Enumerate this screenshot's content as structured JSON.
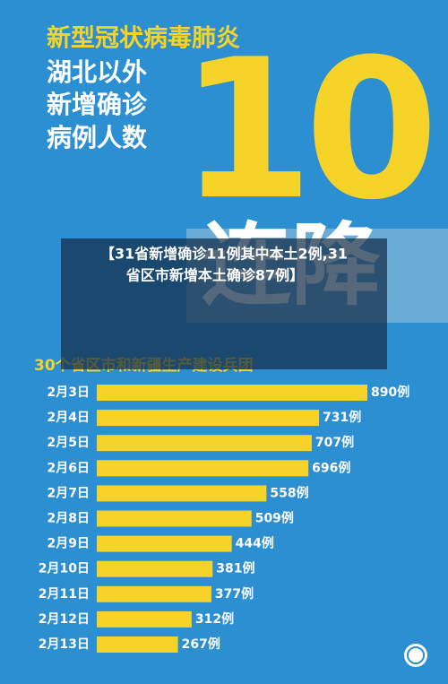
{
  "chart_data": {
    "type": "bar",
    "title": "新型冠状病毒肺炎",
    "heading_lines": [
      "湖北以外",
      "新增确诊",
      "病例人数"
    ],
    "big_number": "10",
    "big_text": "连降",
    "caption_lines": [
      "【31省新增确诊11例其中本土2例,31",
      "省区市新增本土确诊87例】"
    ],
    "subtitle": "30个省区市和新疆生产建设兵团",
    "categories": [
      "2月3日",
      "2月4日",
      "2月5日",
      "2月6日",
      "2月7日",
      "2月8日",
      "2月9日",
      "2月10日",
      "2月11日",
      "2月12日",
      "2月13日"
    ],
    "values": [
      890,
      731,
      707,
      696,
      558,
      509,
      444,
      381,
      377,
      312,
      267
    ],
    "value_labels": [
      "890例",
      "731例",
      "707例",
      "696例",
      "558例",
      "509例",
      "444例",
      "381例",
      "377例",
      "312例",
      "267例"
    ],
    "color": "#f6d329"
  }
}
